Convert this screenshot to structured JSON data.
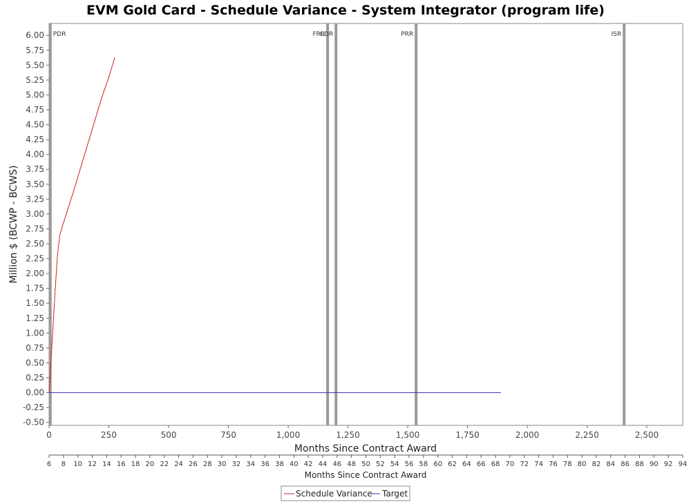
{
  "chart_data": {
    "type": "line",
    "title": "EVM Gold Card - Schedule Variance - System Integrator (program life)",
    "ylabel": "Million $ (BCWP - BCWS)",
    "xlabel": "Months Since Contract Award",
    "x2label": "Months Since Contract Award",
    "ylim": [
      -0.55,
      6.2
    ],
    "xlim": [
      0,
      2650
    ],
    "x2lim": [
      6,
      94
    ],
    "yticks": [
      "-0.50",
      "-0.25",
      "0.00",
      "0.25",
      "0.50",
      "0.75",
      "1.00",
      "1.25",
      "1.50",
      "1.75",
      "2.00",
      "2.25",
      "2.50",
      "2.75",
      "3.00",
      "3.25",
      "3.50",
      "3.75",
      "4.00",
      "4.25",
      "4.50",
      "4.75",
      "5.00",
      "5.25",
      "5.50",
      "5.75",
      "6.00"
    ],
    "xticks": [
      "0",
      "250",
      "500",
      "750",
      "1,000",
      "1,250",
      "1,500",
      "1,750",
      "2,000",
      "2,250",
      "2,500"
    ],
    "x2ticks": [
      "6",
      "8",
      "10",
      "12",
      "14",
      "16",
      "18",
      "20",
      "22",
      "24",
      "26",
      "28",
      "30",
      "32",
      "34",
      "36",
      "38",
      "40",
      "42",
      "44",
      "46",
      "48",
      "50",
      "52",
      "54",
      "56",
      "58",
      "60",
      "62",
      "64",
      "66",
      "68",
      "70",
      "72",
      "74",
      "76",
      "78",
      "80",
      "82",
      "84",
      "86",
      "88",
      "90",
      "92",
      "94"
    ],
    "series": [
      {
        "name": "Schedule Variance",
        "color": "#cc2222",
        "x": [
          0,
          5,
          15,
          25,
          35,
          45,
          60,
          80,
          100,
          130,
          160,
          190,
          220,
          250,
          275
        ],
        "y": [
          0.0,
          0.3,
          1.0,
          1.7,
          2.3,
          2.65,
          2.85,
          3.1,
          3.35,
          3.75,
          4.15,
          4.55,
          4.95,
          5.3,
          5.63
        ]
      },
      {
        "name": "Target",
        "color": "#3333aa",
        "x": [
          0,
          1890
        ],
        "y": [
          0.0,
          0.0
        ]
      }
    ],
    "milestones": [
      {
        "label": "PDR",
        "x": 5
      },
      {
        "label": "FRR",
        "x": 1165
      },
      {
        "label": "CDR",
        "x": 1200
      },
      {
        "label": "PRR",
        "x": 1535
      },
      {
        "label": "ISR",
        "x": 2405
      }
    ],
    "milestone_color": "#999999",
    "grid": false,
    "legend_position": "bottom-center"
  }
}
